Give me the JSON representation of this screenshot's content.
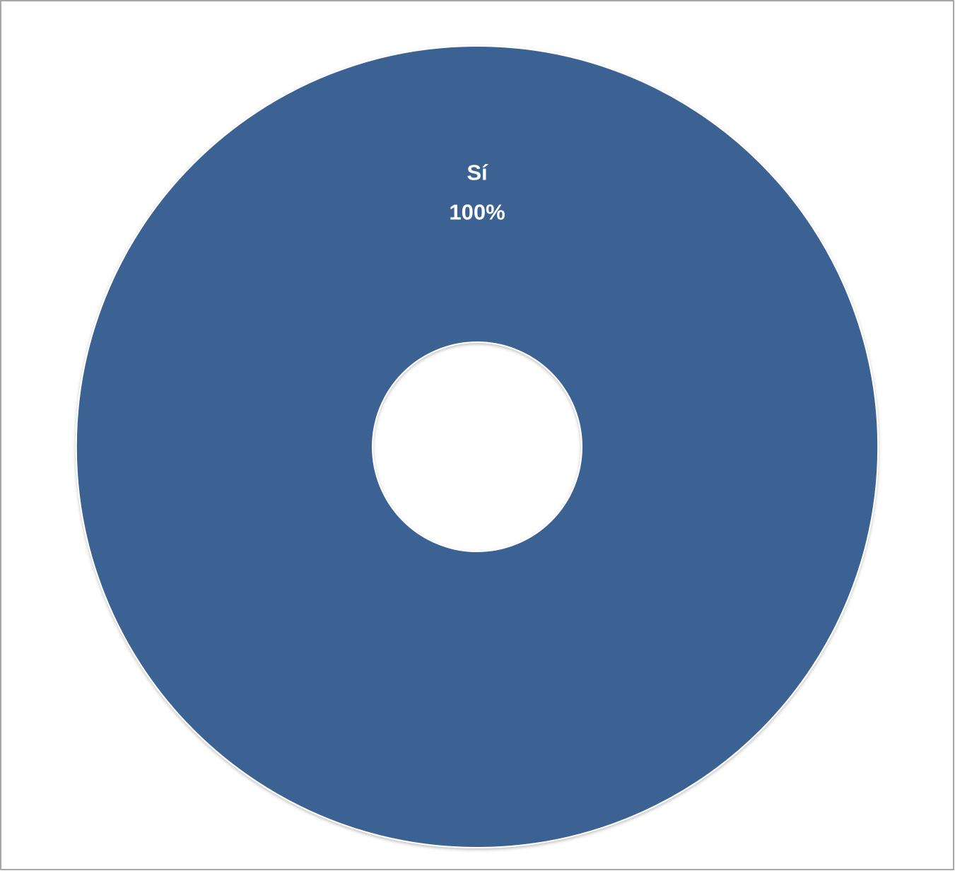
{
  "chart_data": {
    "type": "donut",
    "categories": [
      "Sí"
    ],
    "values": [
      100
    ],
    "value_labels": [
      "100%"
    ],
    "colors": [
      "#3a6293"
    ]
  }
}
